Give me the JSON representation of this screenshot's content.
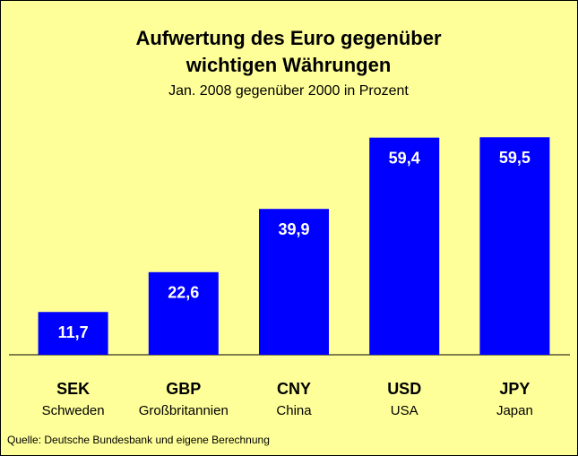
{
  "chart_data": {
    "type": "bar",
    "title": [
      "Aufwertung des Euro gegenüber",
      "wichtigen Währungen"
    ],
    "subtitle": "Jan. 2008 gegenüber 2000 in Prozent",
    "categories": [
      "SEK",
      "GBP",
      "CNY",
      "USD",
      "JPY"
    ],
    "category_sublabels": [
      "Schweden",
      "Großbritannien",
      "China",
      "USA",
      "Japan"
    ],
    "values": [
      11.7,
      22.6,
      39.9,
      59.4,
      59.5
    ],
    "value_labels": [
      "11,7",
      "22,6",
      "39,9",
      "59,4",
      "59,5"
    ],
    "color": "#0000ff",
    "source": "Quelle: Deutsche Bundesbank und eigene Berechnung"
  }
}
